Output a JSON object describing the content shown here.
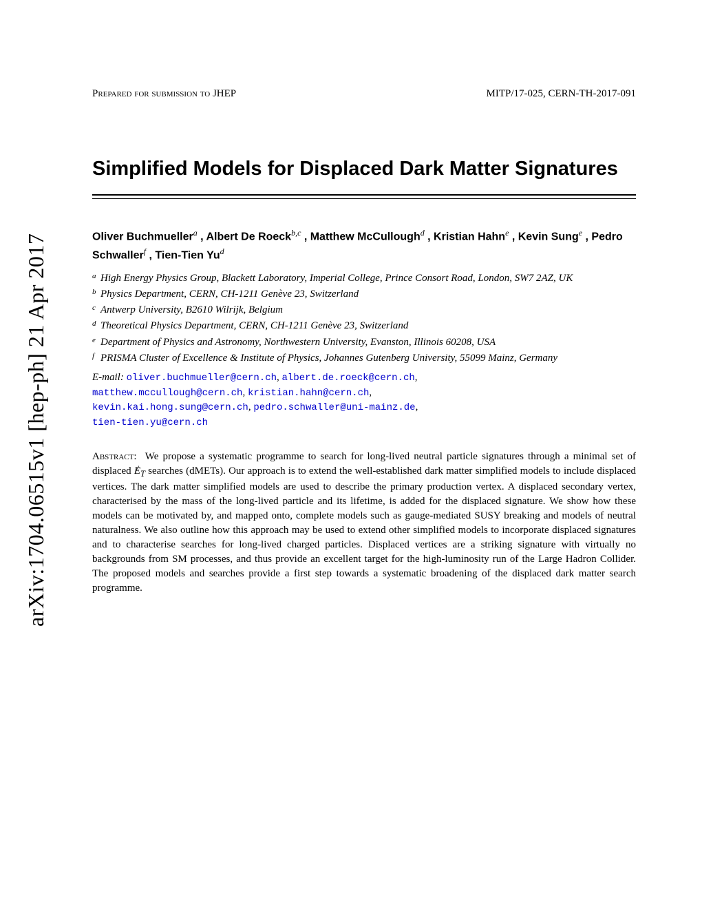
{
  "arxiv_stamp": "arXiv:1704.06515v1  [hep-ph]  21 Apr 2017",
  "header": {
    "left": "Prepared for submission to JHEP",
    "right": "MITP/17-025, CERN-TH-2017-091"
  },
  "title": "Simplified Models for Displaced Dark Matter Signatures",
  "authors_line1": "Oliver Buchmueller",
  "authors_sup1": "a",
  "authors_comma1": " , Albert De Roeck",
  "authors_sup2": "b,c",
  "authors_comma2": " , Matthew McCullough",
  "authors_sup3": "d",
  "authors_comma3": " , Kristian Hahn",
  "authors_sup4": "e",
  "authors_comma4": " , Kevin Sung",
  "authors_sup5": "e",
  "authors_comma5": " , Pedro Schwaller",
  "authors_sup6": "f",
  "authors_comma6": " , Tien-Tien Yu",
  "authors_sup7": "d",
  "affiliations": [
    {
      "label": "a",
      "text": "High Energy Physics Group, Blackett Laboratory, Imperial College, Prince Consort Road, London, SW7 2AZ, UK"
    },
    {
      "label": "b",
      "text": "Physics Department, CERN, CH-1211 Genève 23, Switzerland"
    },
    {
      "label": "c",
      "text": "Antwerp University, B2610 Wilrijk, Belgium"
    },
    {
      "label": "d",
      "text": "Theoretical Physics Department, CERN, CH-1211 Genève 23, Switzerland"
    },
    {
      "label": "e",
      "text": "Department of Physics and Astronomy, Northwestern University, Evanston, Illinois 60208, USA"
    },
    {
      "label": "f",
      "text": "PRISMA Cluster of Excellence & Institute of Physics, Johannes Gutenberg University, 55099 Mainz, Germany"
    }
  ],
  "emails": {
    "label": "E-mail:",
    "list": [
      "oliver.buchmueller@cern.ch",
      "albert.de.roeck@cern.ch",
      "matthew.mccullough@cern.ch",
      "kristian.hahn@cern.ch",
      "kevin.kai.hong.sung@cern.ch",
      "pedro.schwaller@uni-mainz.de",
      "tien-tien.yu@cern.ch"
    ]
  },
  "abstract": {
    "label": "Abstract:",
    "text_before_et": "We propose a systematic programme to search for long-lived neutral particle signatures through a minimal set of displaced ",
    "et_symbol": "E",
    "et_sub": "T",
    "text_after_et": " searches (dMETs). Our approach is to extend the well-established dark matter simplified models to include displaced vertices. The dark matter simplified models are used to describe the primary production vertex. A displaced secondary vertex, characterised by the mass of the long-lived particle and its lifetime, is added for the displaced signature. We show how these models can be motivated by, and mapped onto, complete models such as gauge-mediated SUSY breaking and models of neutral naturalness. We also outline how this approach may be used to extend other simplified models to incorporate displaced signatures and to characterise searches for long-lived charged particles. Displaced vertices are a striking signature with virtually no backgrounds from SM processes, and thus provide an excellent target for the high-luminosity run of the Large Hadron Collider. The proposed models and searches provide a first step towards a systematic broadening of the displaced dark matter search programme."
  }
}
